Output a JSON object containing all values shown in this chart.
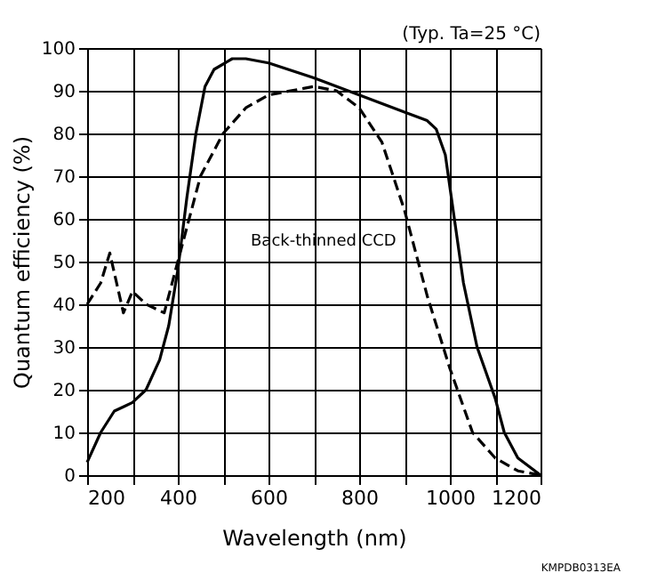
{
  "chart_data": {
    "type": "line",
    "xlabel": "Wavelength (nm)",
    "ylabel": "Quantum efficiency (%)",
    "annotations": [
      "(Typ. Ta=25 °C)",
      "KMPDB0313EA"
    ],
    "xlim": [
      200,
      1200
    ],
    "ylim": [
      0,
      100
    ],
    "xticks": [
      200,
      {
        "value": 300,
        "label": null
      },
      400,
      {
        "value": 500,
        "label": null
      },
      600,
      {
        "value": 700,
        "label": null
      },
      800,
      {
        "value": 900,
        "label": null
      },
      1000,
      {
        "value": 1100,
        "label": null
      },
      1200
    ],
    "yticks": [
      0,
      10,
      20,
      30,
      40,
      50,
      60,
      70,
      80,
      90,
      100
    ],
    "grid": true,
    "legend": false,
    "marker": "none",
    "series": [
      {
        "name": "Back-thinned CCD",
        "color": "#000000",
        "line_style": "solid",
        "x": [
          200,
          230,
          260,
          280,
          300,
          330,
          360,
          380,
          400,
          420,
          440,
          460,
          480,
          520,
          550,
          600,
          700,
          800,
          900,
          950,
          970,
          990,
          1010,
          1030,
          1060,
          1100,
          1120,
          1150,
          1200
        ],
        "values": [
          3,
          10,
          15,
          16,
          17,
          20,
          27,
          35,
          48,
          65,
          80,
          91,
          95,
          97.5,
          97.5,
          96.5,
          93,
          89,
          85,
          83,
          81,
          75,
          60,
          45,
          30,
          18,
          10,
          4,
          0
        ]
      },
      {
        "color": "#000000",
        "line_style": "dashed",
        "x": [
          200,
          230,
          250,
          265,
          280,
          300,
          330,
          370,
          400,
          450,
          500,
          550,
          600,
          700,
          750,
          800,
          850,
          900,
          950,
          1000,
          1050,
          1100,
          1150,
          1200
        ],
        "values": [
          40,
          45,
          52,
          45,
          38,
          43,
          40,
          38,
          50,
          70,
          80,
          86,
          89,
          91,
          90,
          86,
          78,
          62,
          42,
          25,
          10,
          4,
          1,
          0
        ]
      }
    ]
  }
}
